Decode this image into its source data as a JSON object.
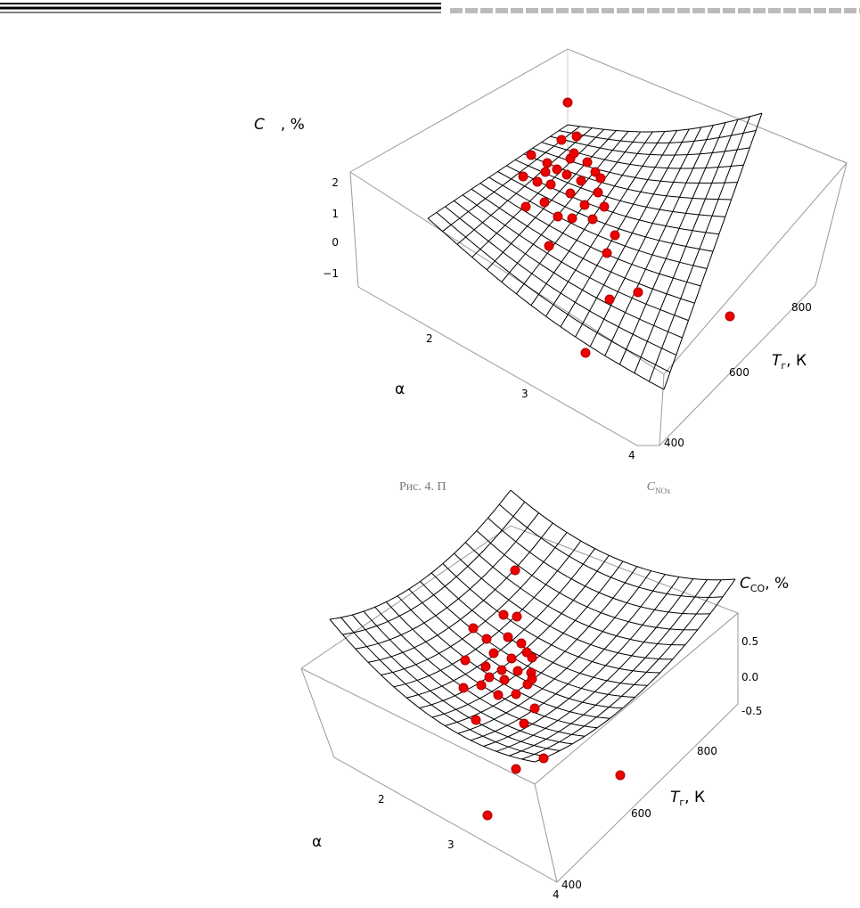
{
  "figures": [
    {
      "z_label": {
        "symbol": "C",
        "unit": ", %"
      },
      "z_ticks": [
        "2",
        "1",
        "0",
        "−1"
      ],
      "x_label": "α",
      "x_ticks": [
        "2",
        "3",
        "4"
      ],
      "y_label": {
        "symbol": "T",
        "sub": "г",
        "unit": ", К"
      },
      "y_ticks": [
        "400",
        "600",
        "800"
      ],
      "caption": {
        "text": "Рис. 4. П",
        "symbol": "C",
        "sub": "NOx"
      }
    },
    {
      "z_label": {
        "symbol": "C",
        "sub": "CO",
        "unit": ", %"
      },
      "z_ticks": [
        "0.5",
        "0.0",
        "-0.5"
      ],
      "x_label": "α",
      "x_ticks": [
        "2",
        "3",
        "4"
      ],
      "y_label": {
        "symbol": "T",
        "sub": "г",
        "unit": ", К"
      },
      "y_ticks": [
        "400",
        "600",
        "800"
      ]
    }
  ]
}
